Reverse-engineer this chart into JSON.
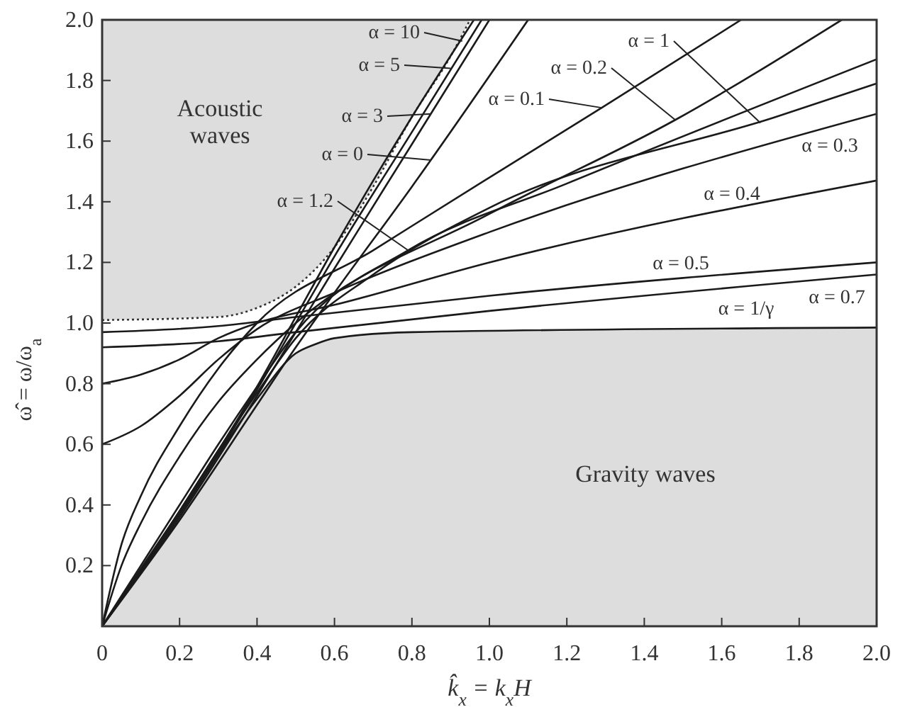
{
  "chart_data": {
    "type": "line",
    "xlabel": "k̂$_{x}$ = k$_{x}$H",
    "ylabel": "ω̂ = ω/ω$_{a}$",
    "xlim": [
      0,
      2
    ],
    "ylim": [
      0,
      2
    ],
    "xticks": [
      0,
      0.2,
      0.4,
      0.6,
      0.8,
      {
        "value": 1,
        "label": "1.0"
      },
      1.2,
      1.4,
      1.6,
      1.8,
      {
        "value": 2,
        "label": "2.0"
      }
    ],
    "yticks": [
      0.2,
      0.4,
      0.6,
      0.8,
      {
        "value": 1,
        "label": "1.0"
      },
      1.2,
      1.4,
      1.6,
      1.8,
      {
        "value": 2,
        "label": "2.0"
      }
    ],
    "grid": false,
    "series": [
      {
        "type": "line",
        "color": "#333333",
        "line_style": "dotted",
        "x": [
          0,
          0.3,
          0.4,
          0.5,
          0.6,
          0.7,
          0.8,
          0.9,
          0.95
        ],
        "values": [
          1.01,
          1.02,
          1.05,
          1.12,
          1.25,
          1.45,
          1.68,
          1.88,
          2.0
        ],
        "lower": [
          1.01,
          1.02,
          1.05,
          1.12,
          1.25,
          1.45,
          1.68,
          1.88,
          2.0
        ],
        "upper": [
          2,
          2,
          2,
          2,
          2,
          2,
          2,
          2,
          2
        ]
      },
      {
        "type": "area",
        "color": "#dddddd",
        "line_style": "solid",
        "x": [
          0,
          0.2,
          0.4,
          0.5,
          0.55,
          0.6,
          0.8,
          2.0
        ],
        "values": [
          0,
          0.37,
          0.75,
          0.9,
          0.93,
          0.95,
          0.97,
          0.985
        ]
      },
      {
        "color": "#1a1a1a",
        "x": [
          0,
          0.2,
          0.4,
          0.5,
          0.6,
          0.8,
          0.96
        ],
        "values": [
          0,
          0.38,
          0.79,
          1.02,
          1.25,
          1.68,
          2.0
        ]
      },
      {
        "color": "#1a1a1a",
        "x": [
          0,
          0.2,
          0.4,
          0.5,
          0.6,
          0.8,
          0.98
        ],
        "values": [
          0,
          0.37,
          0.78,
          1.0,
          1.22,
          1.63,
          2.0
        ]
      },
      {
        "color": "#1a1a1a",
        "x": [
          0,
          0.2,
          0.4,
          0.5,
          0.6,
          0.8,
          1.0
        ],
        "values": [
          0,
          0.36,
          0.76,
          0.97,
          1.18,
          1.59,
          2.0
        ]
      },
      {
        "color": "#1a1a1a",
        "x": [
          0,
          0.2,
          0.4,
          0.5,
          0.6,
          0.8,
          1.1
        ],
        "values": [
          0,
          0.35,
          0.73,
          0.92,
          1.1,
          1.45,
          2.0
        ]
      },
      {
        "color": "#1a1a1a",
        "x": [
          0,
          0.1,
          0.2,
          0.3,
          0.4,
          0.5,
          0.79,
          1.2,
          2.0
        ],
        "values": [
          0,
          0.2,
          0.4,
          0.6,
          0.79,
          0.97,
          1.24,
          1.46,
          1.87
        ]
      },
      {
        "color": "#1a1a1a",
        "x": [
          0,
          0.05,
          0.1,
          0.2,
          0.3,
          0.4,
          0.7,
          1.0,
          1.29,
          1.65
        ],
        "values": [
          0,
          0.27,
          0.43,
          0.66,
          0.85,
          1.0,
          1.24,
          1.48,
          1.71,
          2.0
        ]
      },
      {
        "color": "#1a1a1a",
        "x": [
          0,
          0.05,
          0.1,
          0.2,
          0.3,
          0.4,
          0.5,
          1.0,
          1.48,
          1.91
        ],
        "values": [
          0,
          0.2,
          0.34,
          0.56,
          0.74,
          0.88,
          1.0,
          1.36,
          1.67,
          2.0
        ]
      },
      {
        "color": "#1a1a1a",
        "x": [
          0,
          0.1,
          0.2,
          0.3,
          0.4,
          0.5,
          0.7,
          1.0,
          1.74,
          2.0
        ],
        "values": [
          0,
          0.19,
          0.38,
          0.58,
          0.77,
          0.95,
          1.16,
          1.38,
          1.68,
          1.79
        ]
      },
      {
        "color": "#1a1a1a",
        "x": [
          0,
          0.1,
          0.2,
          0.3,
          0.4,
          0.6,
          1.0,
          2.0
        ],
        "values": [
          0.6,
          0.66,
          0.76,
          0.88,
          0.98,
          1.1,
          1.3,
          1.69
        ]
      },
      {
        "color": "#1a1a1a",
        "x": [
          0,
          0.1,
          0.2,
          0.3,
          0.4,
          0.6,
          1.0,
          2.0
        ],
        "values": [
          0.8,
          0.83,
          0.88,
          0.95,
          1.0,
          1.06,
          1.2,
          1.47
        ]
      },
      {
        "color": "#1a1a1a",
        "x": [
          0,
          0.3,
          0.5,
          1.0,
          2.0
        ],
        "values": [
          0.97,
          0.99,
          1.02,
          1.09,
          1.2
        ]
      },
      {
        "color": "#1a1a1a",
        "x": [
          0,
          0.3,
          0.5,
          1.0,
          2.0
        ],
        "values": [
          0.92,
          0.94,
          0.97,
          1.04,
          1.16
        ]
      }
    ],
    "annotations": [
      "Acoustic waves",
      "Gravity waves",
      {
        "text": "α = 10",
        "x": 0.93,
        "y": 1.93
      },
      {
        "text": "α = 5",
        "x": 0.9,
        "y": 1.84
      },
      {
        "text": "α = 3",
        "x": 0.85,
        "y": 1.69
      },
      "α = 0",
      {
        "text": "α = 1.2",
        "x": 0.79,
        "y": 1.24
      },
      {
        "text": "α = 0.1",
        "x": 1.29,
        "y": 1.71
      },
      {
        "text": "α = 0.2",
        "x": 1.48,
        "y": 1.67
      },
      {
        "text": "α = 1",
        "x": 1.7,
        "y": 1.66
      },
      {
        "text": "α = 0.3",
        "x": 1.86,
        "y": 1.64
      },
      {
        "text": "α = 0.4",
        "x": 1.6,
        "y": 1.37
      },
      {
        "text": "α = 0.5",
        "x": 1.7,
        "y": 1.17
      },
      {
        "text": "α = 0.7",
        "x": 1.93,
        "y": 1.15
      },
      {
        "text": "α = 1/γ",
        "x": 1.75,
        "y": 0.98
      }
    ]
  }
}
